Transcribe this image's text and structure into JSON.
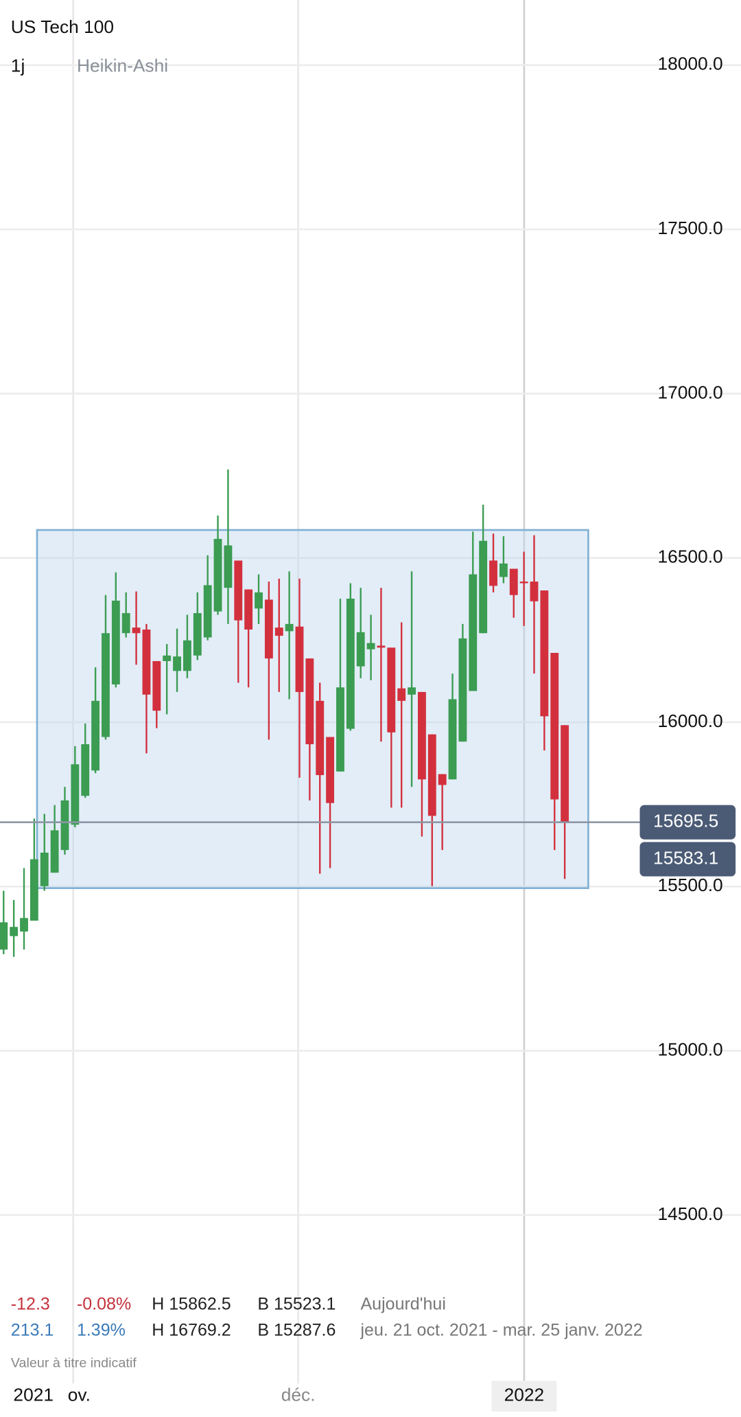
{
  "chart_data": {
    "type": "candlestick",
    "title": "US Tech 100",
    "interval": "1j",
    "style": "Heikin-Ashi",
    "open": [
      15308,
      15349,
      15363,
      15396,
      15501,
      15542,
      15611,
      15688,
      15776,
      15853,
      15955,
      16115,
      16271,
      16288,
      16282,
      16186,
      16186,
      16156,
      16156,
      16203,
      16258,
      16337,
      16409,
      16492,
      16404,
      16346,
      16373,
      16288,
      16277,
      16291,
      16194,
      16065,
      15955,
      15850,
      15980,
      16170,
      16222,
      16233,
      16227,
      16103,
      16084,
      16092,
      15963,
      15842,
      15826,
      15941,
      16095,
      16271,
      16492,
      16442,
      16467,
      16428,
      16428,
      16401,
      16211,
      15991
    ],
    "high": [
      15487,
      15459,
      15556,
      15707,
      15721,
      15748,
      15803,
      15927,
      15996,
      16167,
      16387,
      16456,
      16395,
      16398,
      16299,
      16186,
      16238,
      16285,
      16327,
      16395,
      16508,
      16629,
      16769,
      16492,
      16404,
      16450,
      16428,
      16437,
      16459,
      16437,
      16194,
      16120,
      15955,
      16376,
      16423,
      16409,
      16327,
      16409,
      16227,
      16304,
      16459,
      16092,
      15963,
      15842,
      16148,
      16299,
      16580,
      16662,
      16574,
      16566,
      16467,
      16519,
      16569,
      16401,
      16211,
      15991
    ],
    "low": [
      15294,
      15286,
      15308,
      15396,
      15487,
      15542,
      15597,
      15680,
      15770,
      15845,
      15947,
      16106,
      16258,
      16175,
      15905,
      15982,
      16024,
      16092,
      16134,
      16189,
      16249,
      16327,
      16299,
      16120,
      16106,
      16299,
      15947,
      16092,
      16070,
      15831,
      15762,
      15539,
      15556,
      15850,
      15974,
      16134,
      16128,
      15941,
      15740,
      15740,
      15803,
      15652,
      15501,
      15611,
      15826,
      15941,
      16095,
      16271,
      16395,
      16423,
      16318,
      16293,
      16148,
      15914,
      15611,
      15523
    ],
    "close": [
      15391,
      15377,
      15404,
      15583,
      15603,
      15671,
      15762,
      15872,
      15933,
      16065,
      16271,
      16370,
      16332,
      16271,
      16084,
      16035,
      16203,
      16200,
      16249,
      16332,
      16417,
      16558,
      16538,
      16310,
      16282,
      16395,
      16194,
      16263,
      16299,
      16092,
      15933,
      15839,
      15754,
      16106,
      16376,
      16274,
      16241,
      16227,
      15969,
      16065,
      16106,
      15826,
      15715,
      15809,
      16070,
      16255,
      16450,
      16552,
      16415,
      16483,
      16387,
      16423,
      16368,
      16018,
      15765,
      15695.5
    ],
    "up_color": "#3b9c52",
    "down_color": "#d3303e",
    "ylim": [
      14290,
      18198
    ],
    "yticks": [
      {
        "value": 14500,
        "label": "14500.0"
      },
      {
        "value": 15000,
        "label": "15000.0"
      },
      {
        "value": 15500,
        "label": "15500.0"
      },
      {
        "value": 16000,
        "label": "16000.0"
      },
      {
        "value": 16500,
        "label": "16500.0"
      },
      {
        "value": 17000,
        "label": "17000.0"
      },
      {
        "value": 17500,
        "label": "17500.0"
      },
      {
        "value": 18000,
        "label": "18000.0"
      }
    ],
    "grid": true,
    "range_box": {
      "top": 16585,
      "bottom": 15495
    },
    "last_price": 15695.5,
    "second_price": 15583.1,
    "x_labels": [
      "2021",
      "ov.",
      "déc.",
      "2022"
    ],
    "stats": [
      [
        "-12.3",
        "-0.08%",
        "H 15862.5",
        "B 15523.1",
        "Aujourd'hui"
      ],
      [
        "213.1",
        "1.39%",
        "H 16769.2",
        "B 15287.6",
        "jeu. 21 oct. 2021 - mar. 25 janv. 2022"
      ]
    ],
    "note": "Valeur à titre indicatif"
  }
}
